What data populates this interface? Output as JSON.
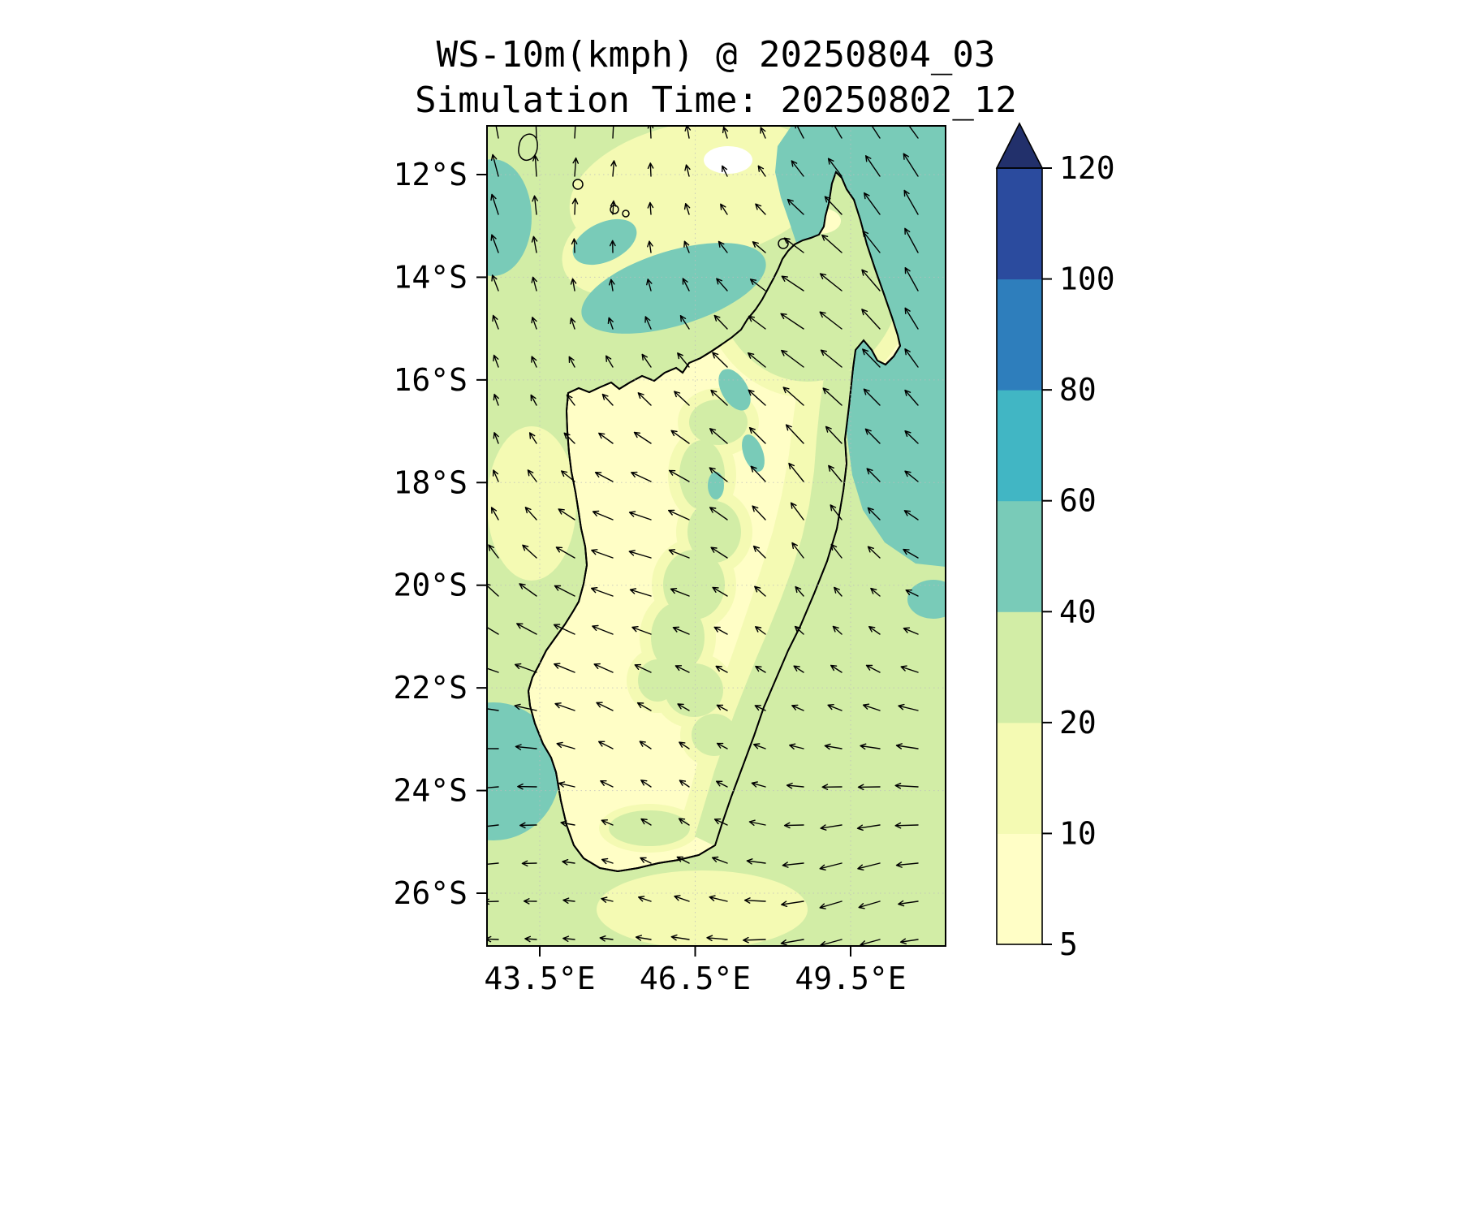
{
  "figure": {
    "title_line1": "WS-10m(kmph) @ 20250804_03",
    "title_line2": "Simulation Time: 20250802_12"
  },
  "axes": {
    "y_tick_labels": [
      "12°S",
      "14°S",
      "16°S",
      "18°S",
      "20°S",
      "22°S",
      "24°S",
      "26°S"
    ],
    "x_tick_labels": [
      "43.5°E",
      "46.5°E",
      "49.5°E"
    ]
  },
  "colorbar": {
    "levels": [
      5,
      10,
      20,
      40,
      60,
      80,
      100,
      120
    ],
    "band_colors": [
      "#fffec6",
      "#f4fab3",
      "#d2eda6",
      "#79cbb8",
      "#41b6c4",
      "#2e7ebc",
      "#2b4b9e"
    ],
    "extend_color": "#22306b"
  },
  "chart_data": {
    "type": "heatmap",
    "title": "WS-10m(kmph) @ 20250804_03",
    "subtitle": "Simulation Time: 20250802_12",
    "variable": "WS-10m",
    "units": "kmph",
    "valid_time": "20250804_03",
    "simulation_time": "20250802_12",
    "region": "Madagascar and surrounding ocean",
    "x_axis": {
      "label": "longitude",
      "ticks": [
        "43.5°E",
        "46.5°E",
        "49.5°E"
      ],
      "range_approx": [
        "42.5°E",
        "51.3°E"
      ]
    },
    "y_axis": {
      "label": "latitude",
      "ticks": [
        "12°S",
        "14°S",
        "16°S",
        "18°S",
        "20°S",
        "22°S",
        "24°S",
        "26°S"
      ],
      "range_approx": [
        "11.1°S",
        "27.0°S"
      ]
    },
    "contour_levels_kmph": [
      5,
      10,
      20,
      40,
      60,
      80,
      100,
      120
    ],
    "band_colors": [
      "#fffec6",
      "#f4fab3",
      "#d2eda6",
      "#79cbb8",
      "#41b6c4",
      "#2e7ebc",
      "#2b4b9e"
    ],
    "colorbar_extend_above_120_color": "#22306b",
    "legend_position": "right vertical colorbar with upward extend triangle",
    "grid": "faint dotted graticule at tick positions",
    "wind_overlay": "quiver arrows of 10 m wind direction; flow toward NW over the eastern ocean, toward N/NW in the northwest, toward W along the southern edge",
    "field_summary": [
      {
        "area": "open ocean, most of domain",
        "wind_speed_kmph": "20-40"
      },
      {
        "area": "northeast ocean off northern Madagascar (large patch)",
        "wind_speed_kmph": "40-60"
      },
      {
        "area": "Mozambique Channel diagonal band northwest of island",
        "wind_speed_kmph": "40-60"
      },
      {
        "area": "southwest ocean at left edge near 23-25S",
        "wind_speed_kmph": "40-60"
      },
      {
        "area": "northwest ocean at left edge near 13S",
        "wind_speed_kmph": "40-60"
      },
      {
        "area": "island interior (center, south, west)",
        "wind_speed_kmph": "5-20"
      },
      {
        "area": "northern island and east-coast strip",
        "wind_speed_kmph": "20-40"
      },
      {
        "area": "small spots north-central ocean",
        "wind_speed_kmph": "<5"
      }
    ]
  }
}
